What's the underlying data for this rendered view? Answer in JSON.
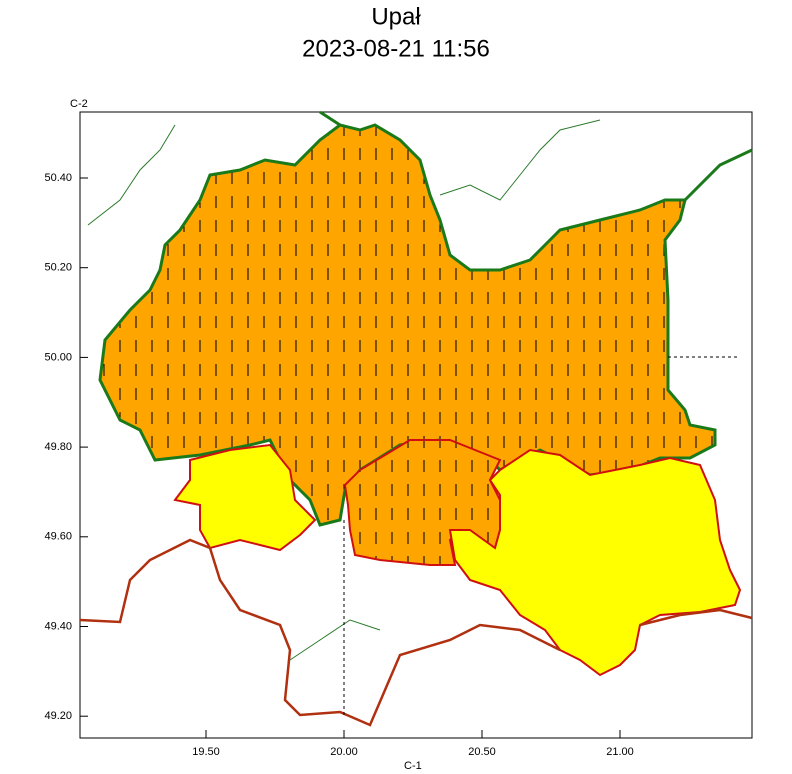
{
  "title": {
    "hazard": "Upał",
    "timestamp": "2023-08-21 11:56"
  },
  "axes": {
    "y_label": "C-2",
    "x_label": "C-1",
    "y_ticks": [
      "50.40",
      "50.20",
      "50.00",
      "49.80",
      "49.60",
      "49.40",
      "49.20"
    ],
    "x_ticks": [
      "19.50",
      "20.00",
      "20.50",
      "21.00"
    ]
  }
}
